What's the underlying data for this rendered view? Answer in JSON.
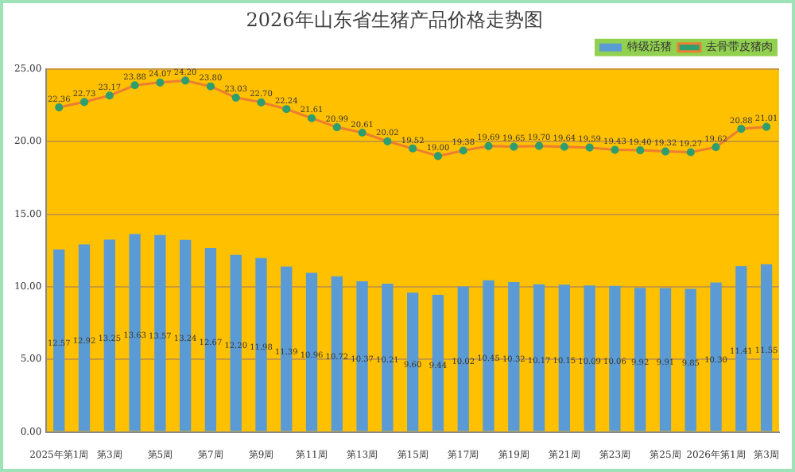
{
  "chart_data": {
    "type": "bar",
    "title": "2026年山东省生猪产品价格走势图",
    "categories": [
      "2025年第1周",
      null,
      "第3周",
      null,
      "第5周",
      null,
      "第7周",
      null,
      "第9周",
      null,
      "第11周",
      null,
      "第13周",
      null,
      "第15周",
      null,
      "第17周",
      null,
      "第19周",
      null,
      "第21周",
      null,
      "第23周",
      null,
      "第25周",
      null,
      "2026年第1周",
      null,
      "第3周"
    ],
    "series": [
      {
        "name": "特级活猪",
        "color": "#5b9bd5",
        "values": [
          12.57,
          12.92,
          13.25,
          13.63,
          13.57,
          13.24,
          12.67,
          12.2,
          11.98,
          11.39,
          10.96,
          10.72,
          10.37,
          10.21,
          9.6,
          9.44,
          10.02,
          10.45,
          10.32,
          10.17,
          10.15,
          10.09,
          10.06,
          9.92,
          9.91,
          9.85,
          10.3,
          11.41,
          11.55
        ],
        "value_labels": [
          "12.57",
          "12.92",
          "13.25",
          "13.63",
          "13.57",
          "13.24",
          "12.67",
          "12.20",
          "11.98",
          "11.39",
          "10.96",
          "10.72",
          "10.37",
          "10.21",
          "9.60",
          "9.44",
          "10.02",
          "10.45",
          "10.32",
          "10.17",
          "10.15",
          "10.09",
          "10.06",
          "9.92",
          "9.91",
          "9.85",
          "10.30",
          "11.41",
          "11.55"
        ]
      },
      {
        "name": "去骨带皮猪肉",
        "type": "line",
        "color": "#ed7d31",
        "values": [
          22.36,
          22.73,
          23.17,
          23.88,
          24.07,
          24.2,
          23.8,
          23.03,
          22.7,
          22.24,
          21.61,
          20.99,
          20.61,
          20.02,
          19.52,
          19.0,
          19.38,
          19.69,
          19.65,
          19.7,
          19.64,
          19.59,
          19.43,
          19.4,
          19.32,
          19.27,
          19.62,
          20.88,
          21.01
        ],
        "value_labels": [
          "22.36",
          "22.73",
          "23.17",
          "23.88",
          "24.07",
          "24.20",
          "23.80",
          "23.03",
          "22.70",
          "22.24",
          "21.61",
          "20.99",
          "20.61",
          "20.02",
          "19.52",
          "19.00",
          "19.38",
          "19.69",
          "19.65",
          "19.70",
          "19.64",
          "19.59",
          "19.43",
          "19.40",
          "19.32",
          "19.27",
          "19.62",
          "20.88",
          "21.01"
        ]
      }
    ],
    "ylim": [
      0,
      25
    ],
    "yticks": [
      {
        "value": 0,
        "label": "0.00"
      },
      {
        "value": 5,
        "label": "5.00"
      },
      {
        "value": 10,
        "label": "10.00"
      },
      {
        "value": 15,
        "label": "15.00"
      },
      {
        "value": 20,
        "label": "20.00"
      },
      {
        "value": 25,
        "label": "25.00"
      }
    ],
    "grid": "y",
    "legend": "top right",
    "marker": "circle"
  }
}
